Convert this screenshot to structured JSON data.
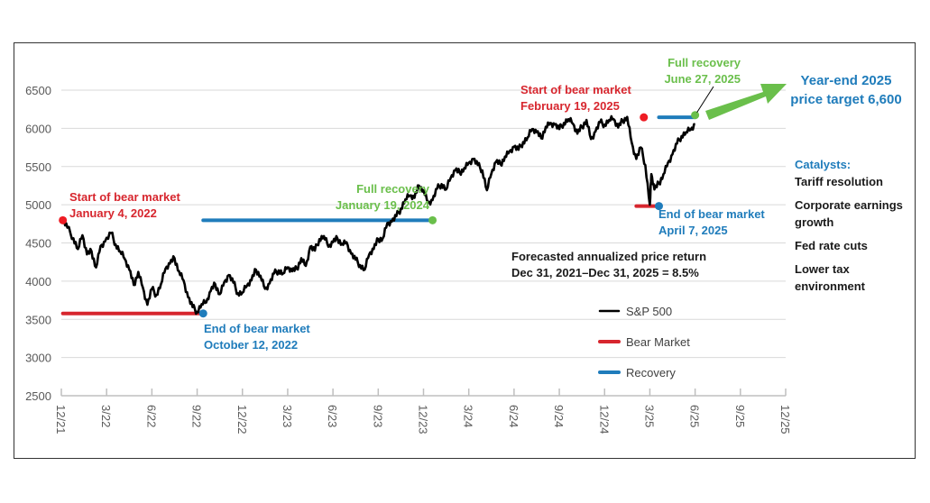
{
  "chart_data": {
    "type": "line",
    "title": "",
    "xlabel": "",
    "ylabel": "",
    "ylim": [
      2500,
      6700
    ],
    "yticks": [
      2500,
      3000,
      3500,
      4000,
      4500,
      5000,
      5500,
      6000,
      6500
    ],
    "ytick_labels": [
      "2500",
      "3000",
      "3500",
      "4000",
      "4500",
      "5000",
      "5500",
      "6000",
      "6500"
    ],
    "xlim": [
      0,
      48
    ],
    "xticks_month_index": [
      0,
      3,
      6,
      9,
      12,
      15,
      18,
      21,
      24,
      27,
      30,
      33,
      36,
      39,
      42,
      45,
      48
    ],
    "xtick_labels": [
      "12/21",
      "3/22",
      "6/22",
      "9/22",
      "12/22",
      "3/23",
      "6/23",
      "9/23",
      "12/23",
      "3/24",
      "6/24",
      "9/24",
      "12/24",
      "3/25",
      "6/25",
      "9/25",
      "12/25"
    ],
    "grid": "horizontal",
    "series": [
      {
        "name": "S&P 500",
        "color": "#000000",
        "x_month_index": [
          0.1,
          0.4,
          0.8,
          1.1,
          1.4,
          1.7,
          2.0,
          2.3,
          2.6,
          2.9,
          3.3,
          3.6,
          3.9,
          4.2,
          4.5,
          4.8,
          5.1,
          5.4,
          5.7,
          6.0,
          6.3,
          6.6,
          6.9,
          7.2,
          7.5,
          7.8,
          8.1,
          8.4,
          8.7,
          9.0,
          9.3,
          9.6,
          9.9,
          10.2,
          10.5,
          10.8,
          11.1,
          11.4,
          11.7,
          12.0,
          12.3,
          12.6,
          12.9,
          13.2,
          13.5,
          13.8,
          14.1,
          14.4,
          14.7,
          15.0,
          15.3,
          15.6,
          15.9,
          16.2,
          16.5,
          16.8,
          17.1,
          17.4,
          17.7,
          18.0,
          18.3,
          18.6,
          18.9,
          19.2,
          19.5,
          19.8,
          20.1,
          20.4,
          20.7,
          21.0,
          21.3,
          21.6,
          21.9,
          22.2,
          22.5,
          22.8,
          23.1,
          23.4,
          23.7,
          24.0,
          24.3,
          24.6,
          24.9,
          25.2,
          25.5,
          25.8,
          26.1,
          26.4,
          26.7,
          27.0,
          27.3,
          27.6,
          27.9,
          28.2,
          28.5,
          28.8,
          29.1,
          29.4,
          29.7,
          30.0,
          30.3,
          30.6,
          30.9,
          31.2,
          31.5,
          31.8,
          32.1,
          32.4,
          32.7,
          33.0,
          33.3,
          33.6,
          33.9,
          34.2,
          34.5,
          34.8,
          35.1,
          35.4,
          35.7,
          36.0,
          36.3,
          36.6,
          36.9,
          37.2,
          37.5,
          37.8,
          38.1,
          38.4,
          38.7,
          39.0,
          39.1,
          39.3,
          39.6,
          39.9,
          40.2,
          40.5,
          40.8,
          41.1,
          41.4,
          41.7,
          42.0
        ],
        "values": [
          4800,
          4700,
          4560,
          4420,
          4600,
          4350,
          4390,
          4180,
          4460,
          4520,
          4630,
          4480,
          4390,
          4290,
          4150,
          3950,
          4120,
          3920,
          3690,
          3900,
          3820,
          3960,
          4160,
          4230,
          4300,
          4130,
          4010,
          3790,
          3660,
          3600,
          3700,
          3720,
          3870,
          3960,
          3830,
          3990,
          4080,
          3980,
          3840,
          3850,
          3940,
          4010,
          4150,
          4070,
          3900,
          3970,
          4100,
          4140,
          4100,
          4180,
          4130,
          4160,
          4300,
          4200,
          4450,
          4400,
          4550,
          4590,
          4450,
          4510,
          4560,
          4490,
          4510,
          4360,
          4280,
          4210,
          4150,
          4350,
          4420,
          4550,
          4560,
          4760,
          4780,
          4850,
          4950,
          5070,
          5120,
          5090,
          5250,
          5190,
          5030,
          5060,
          5210,
          5270,
          5200,
          5350,
          5450,
          5420,
          5480,
          5550,
          5600,
          5520,
          5450,
          5190,
          5410,
          5560,
          5530,
          5630,
          5700,
          5760,
          5720,
          5820,
          5880,
          5990,
          5950,
          5870,
          6020,
          6070,
          6050,
          5990,
          6070,
          6120,
          6060,
          5930,
          6020,
          6110,
          5860,
          5960,
          6080,
          6050,
          6110,
          6120,
          6010,
          6100,
          6150,
          5810,
          5600,
          5750,
          5520,
          5000,
          5400,
          5200,
          5280,
          5400,
          5550,
          5660,
          5800,
          5900,
          5950,
          5980,
          6050,
          6100,
          6173
        ]
      },
      {
        "name": "Bear Market",
        "color": "#d7262e",
        "segments": [
          {
            "from_month": 0.1,
            "to_month": 9.4,
            "value": 3577
          },
          {
            "from_month": 38.1,
            "to_month": 39.6,
            "value": 4983
          }
        ]
      },
      {
        "name": "Recovery",
        "color": "#1f7cbb",
        "segments": [
          {
            "from_month": 9.4,
            "to_month": 24.6,
            "value": 4797
          },
          {
            "from_month": 39.6,
            "to_month": 42.0,
            "value": 6144
          }
        ]
      }
    ],
    "markers": [
      {
        "month": 0.1,
        "value": 4797,
        "color": "#ee1c24",
        "label": [
          "Start of bear market",
          "January 4, 2022"
        ],
        "label_color": "#d7262e"
      },
      {
        "month": 9.4,
        "value": 3577,
        "color": "#1f7cbb",
        "label": [
          "End of bear market",
          "October 12, 2022"
        ],
        "label_color": "#1f7cbb"
      },
      {
        "month": 24.6,
        "value": 4797,
        "color": "#6abf4b",
        "label": [
          "Full recovery",
          "January 19, 2024"
        ],
        "label_color": "#6abf4b"
      },
      {
        "month": 38.6,
        "value": 6144,
        "color": "#ee1c24",
        "label": [
          "Start of bear market",
          "February 19, 2025"
        ],
        "label_color": "#d7262e"
      },
      {
        "month": 39.6,
        "value": 4983,
        "color": "#1f7cbb",
        "label": [
          "End of bear market",
          "April 7, 2025"
        ],
        "label_color": "#1f7cbb"
      },
      {
        "month": 42.0,
        "value": 6173,
        "color": "#6abf4b",
        "label": [
          "Full recovery",
          "June 27, 2025"
        ],
        "label_color": "#6abf4b"
      }
    ],
    "legend": {
      "position": "lower-center-right",
      "items": [
        {
          "label": "S&P 500",
          "color": "#000000"
        },
        {
          "label": "Bear Market",
          "color": "#d7262e"
        },
        {
          "label": "Recovery",
          "color": "#1f7cbb"
        }
      ]
    },
    "annotations": {
      "forecast": [
        "Forecasted annualized price return",
        "Dec 31, 2021–Dec 31, 2025  =  8.5%"
      ],
      "target": [
        "Year-end 2025",
        "price target 6,600"
      ],
      "target_color": "#1f7cbb",
      "arrow_color": "#6abf4b",
      "catalysts_title": "Catalysts:",
      "catalysts_title_color": "#1f7cbb",
      "catalysts": [
        [
          "Tariff resolution"
        ],
        [
          "Corporate earnings",
          "growth"
        ],
        [
          "Fed rate cuts"
        ],
        [
          "Lower tax",
          "environment"
        ]
      ]
    }
  }
}
